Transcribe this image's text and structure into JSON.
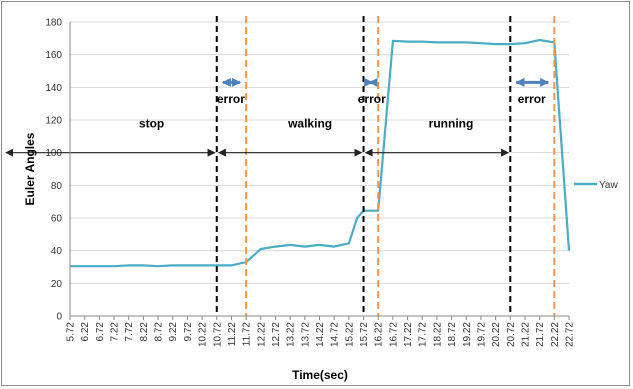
{
  "chart_data": {
    "type": "line",
    "title": "",
    "xlabel": "Time(sec)",
    "ylabel": "Euler Angles",
    "ylim": [
      0,
      180
    ],
    "yticks": [
      0,
      20,
      40,
      60,
      80,
      100,
      120,
      140,
      160,
      180
    ],
    "grid": "horizontal",
    "legend_position": "right",
    "x_categories": [
      "5.72",
      "6.22",
      "6.72",
      "7.22",
      "7.72",
      "8.22",
      "8.72",
      "9.22",
      "9.72",
      "10.22",
      "10.72",
      "11.22",
      "11.72",
      "12.22",
      "12.72",
      "13.22",
      "13.72",
      "14.22",
      "14.72",
      "15.22",
      "15.72",
      "16.22",
      "16.72",
      "17.22",
      "17.72",
      "18.22",
      "18.72",
      "19.22",
      "19.72",
      "20.22",
      "20.72",
      "21.22",
      "21.72",
      "22.22",
      "22.72"
    ],
    "series": [
      {
        "name": "Yaw",
        "color": "#4bacc6",
        "points": [
          [
            5.72,
            30.5
          ],
          [
            6.22,
            30.5
          ],
          [
            6.72,
            30.5
          ],
          [
            7.22,
            30.5
          ],
          [
            7.72,
            31.0
          ],
          [
            8.22,
            31.0
          ],
          [
            8.72,
            30.5
          ],
          [
            9.22,
            31.0
          ],
          [
            9.72,
            31.0
          ],
          [
            10.22,
            31.0
          ],
          [
            10.72,
            31.0
          ],
          [
            11.22,
            31.0
          ],
          [
            11.72,
            33.0
          ],
          [
            12.22,
            41.0
          ],
          [
            12.72,
            42.5
          ],
          [
            13.22,
            43.5
          ],
          [
            13.72,
            42.5
          ],
          [
            14.22,
            43.5
          ],
          [
            14.72,
            42.5
          ],
          [
            15.22,
            44.5
          ],
          [
            15.5,
            60.0
          ],
          [
            15.72,
            64.5
          ],
          [
            16.22,
            64.5
          ],
          [
            16.72,
            168.5
          ],
          [
            17.22,
            168.0
          ],
          [
            17.72,
            168.0
          ],
          [
            18.22,
            167.5
          ],
          [
            18.72,
            167.5
          ],
          [
            19.22,
            167.5
          ],
          [
            19.72,
            167.0
          ],
          [
            20.22,
            166.5
          ],
          [
            20.72,
            166.5
          ],
          [
            21.22,
            167.0
          ],
          [
            21.72,
            169.0
          ],
          [
            22.22,
            167.5
          ],
          [
            22.72,
            40.0
          ]
        ]
      }
    ],
    "vertical_lines": [
      {
        "x": 10.72,
        "color": "#000000"
      },
      {
        "x": 11.72,
        "color": "#f79646"
      },
      {
        "x": 15.72,
        "color": "#000000"
      },
      {
        "x": 16.22,
        "color": "#f79646"
      },
      {
        "x": 20.72,
        "color": "#000000"
      },
      {
        "x": 22.22,
        "color": "#f79646"
      }
    ],
    "region_arrows": [
      {
        "from": 5.72,
        "to": 10.72,
        "y": 100
      },
      {
        "from": 10.72,
        "to": 15.72,
        "y": 100
      },
      {
        "from": 15.72,
        "to": 20.72,
        "y": 100
      }
    ],
    "error_arrows": [
      {
        "from": 10.72,
        "to": 11.72,
        "y": 143
      },
      {
        "from": 15.72,
        "to": 16.22,
        "y": 143
      },
      {
        "from": 20.72,
        "to": 22.22,
        "y": 143
      }
    ],
    "annotations": [
      {
        "text": "stop",
        "x": 8.5,
        "y": 118
      },
      {
        "text": "walking",
        "x": 13.9,
        "y": 118
      },
      {
        "text": "running",
        "x": 18.7,
        "y": 118
      },
      {
        "text": "error",
        "x": 11.2,
        "y": 133
      },
      {
        "text": "error",
        "x": 16.0,
        "y": 133
      },
      {
        "text": "error",
        "x": 21.45,
        "y": 133
      }
    ]
  }
}
